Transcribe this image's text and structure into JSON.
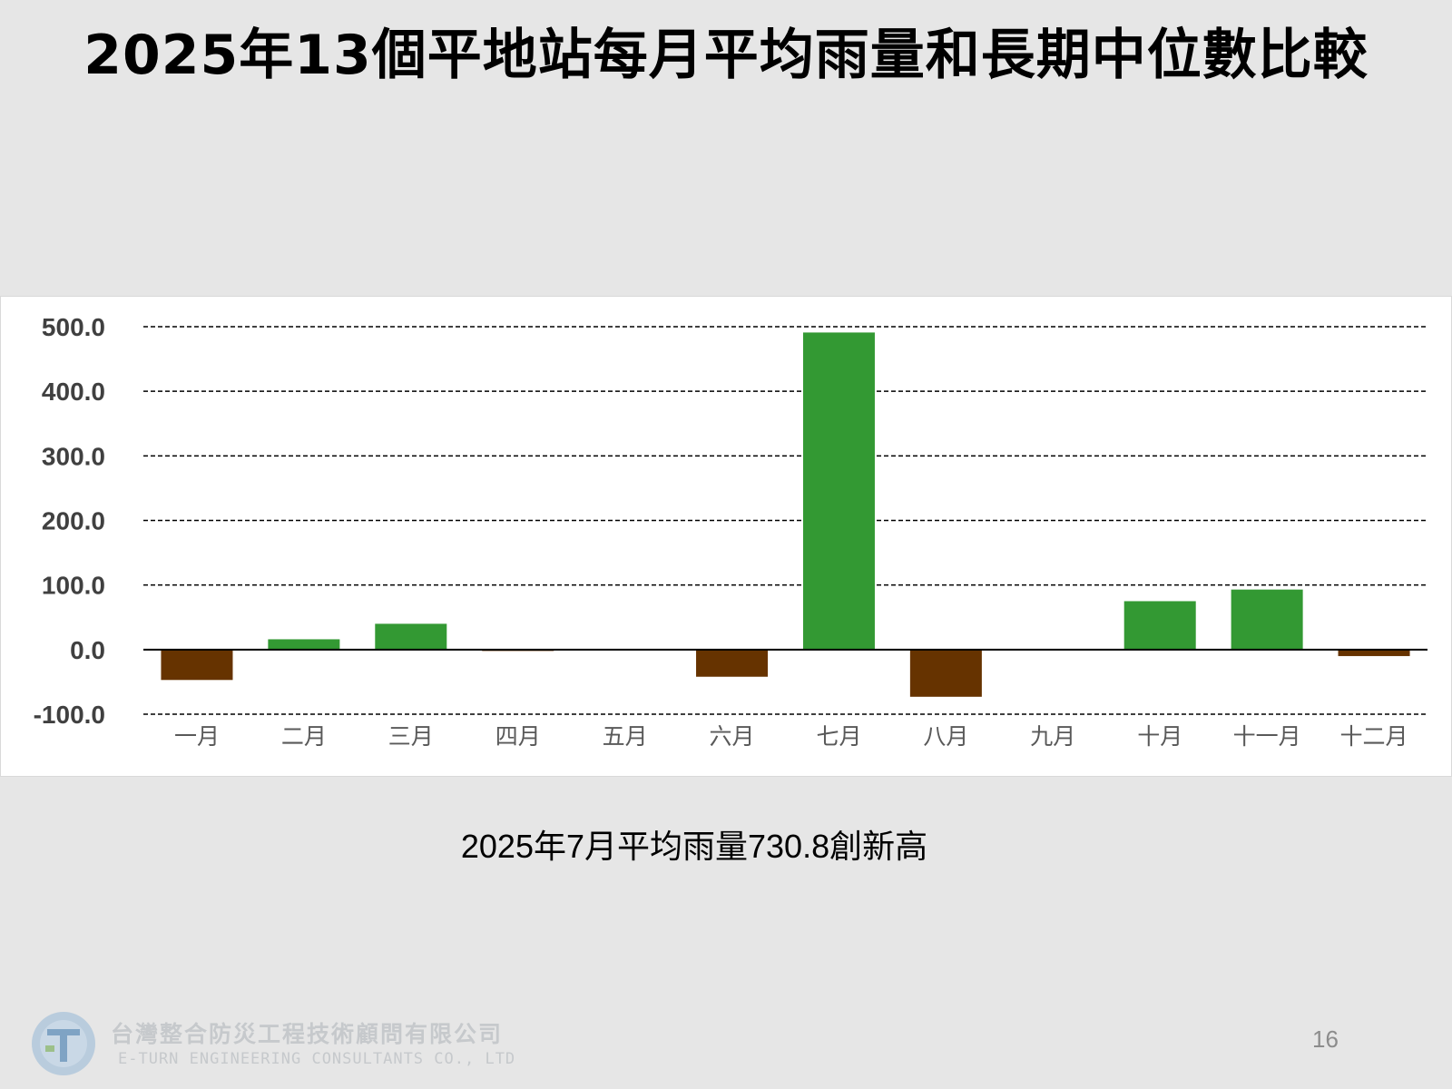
{
  "slide": {
    "title": "2025年13個平地站每月平均雨量和長期中位數比較",
    "note": "2025年7月平均雨量730.8創新高",
    "page_number": "16",
    "company_name_zh": "台灣整合防災工程技術顧問有限公司",
    "company_name_en": "E-TURN ENGINEERING CONSULTANTS CO., LTD",
    "logo_icon": "company-logo-icon"
  },
  "colors": {
    "positive": "#339933",
    "negative": "#663300",
    "background": "#e6e6e6",
    "panel": "#ffffff"
  },
  "chart_data": {
    "type": "bar",
    "categories": [
      "一月",
      "二月",
      "三月",
      "四月",
      "五月",
      "六月",
      "七月",
      "八月",
      "九月",
      "十月",
      "十一月",
      "十二月"
    ],
    "values": [
      -47,
      16,
      40,
      -2,
      0,
      -42,
      491,
      -73,
      0,
      75,
      93,
      -10
    ],
    "ylim": [
      -100,
      500
    ],
    "yticks": [
      "500.0",
      "400.0",
      "300.0",
      "200.0",
      "100.0",
      "0.0",
      "-100.0"
    ],
    "grid": true,
    "grid_style": "dashed",
    "legend": "none"
  }
}
